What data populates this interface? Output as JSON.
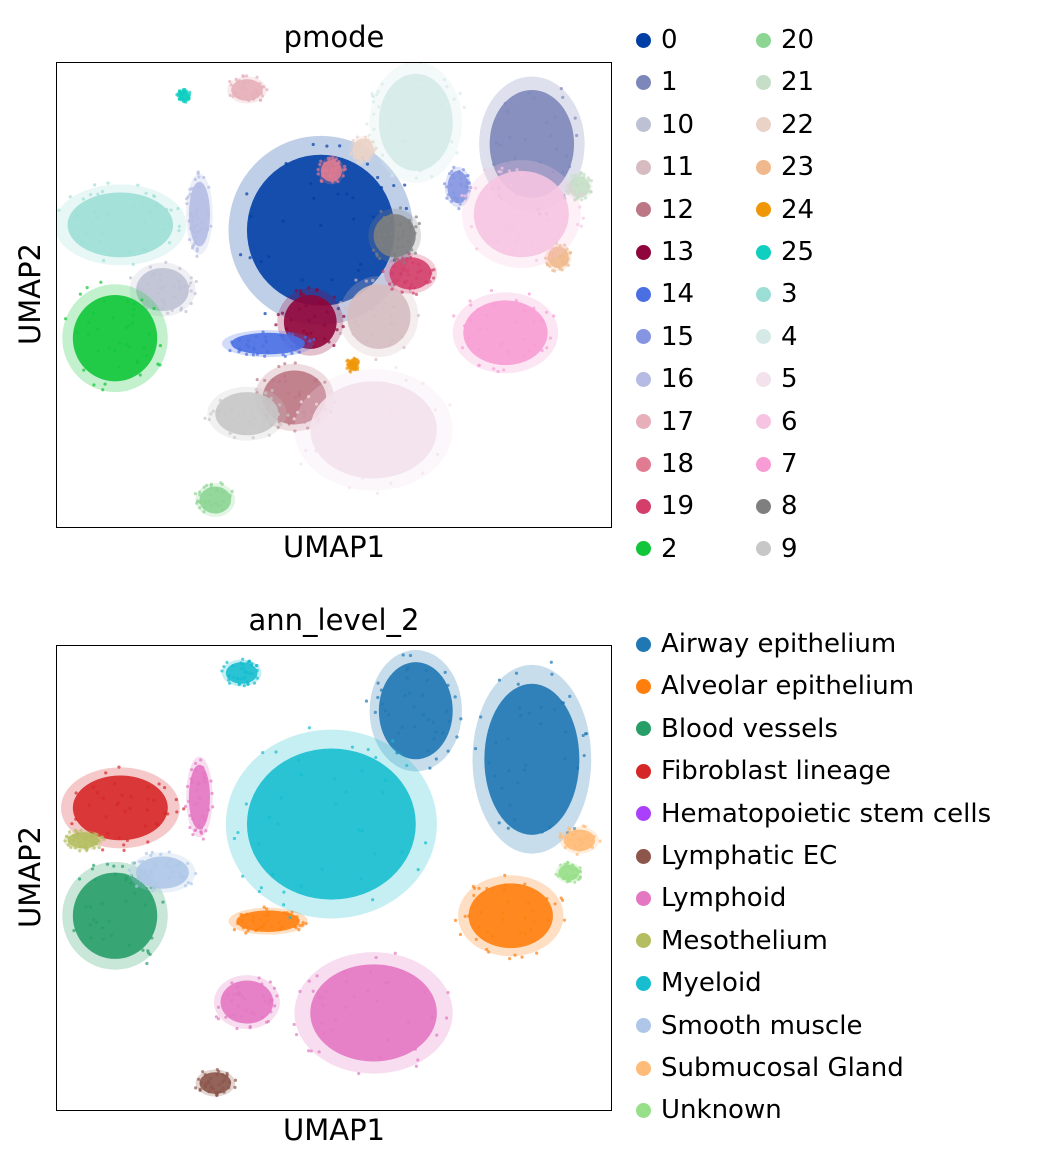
{
  "chart_data": [
    {
      "type": "scatter",
      "title": "pmode",
      "xlabel": "UMAP1",
      "ylabel": "UMAP2",
      "xticks": [],
      "yticks": [],
      "legend_columns": 2,
      "legend_placement": "right",
      "legend": [
        {
          "label": "0",
          "color": "#023fa5"
        },
        {
          "label": "1",
          "color": "#7d87b9"
        },
        {
          "label": "10",
          "color": "#bec1d4"
        },
        {
          "label": "11",
          "color": "#d6bcc0"
        },
        {
          "label": "12",
          "color": "#bb7784"
        },
        {
          "label": "13",
          "color": "#8e063b"
        },
        {
          "label": "14",
          "color": "#4a6fe3"
        },
        {
          "label": "15",
          "color": "#8595e1"
        },
        {
          "label": "16",
          "color": "#b5bbe3"
        },
        {
          "label": "17",
          "color": "#e6afb9"
        },
        {
          "label": "18",
          "color": "#e07b91"
        },
        {
          "label": "19",
          "color": "#d33f6a"
        },
        {
          "label": "2",
          "color": "#11c638"
        },
        {
          "label": "20",
          "color": "#8dd593"
        },
        {
          "label": "21",
          "color": "#c6dec7"
        },
        {
          "label": "22",
          "color": "#ead3c6"
        },
        {
          "label": "23",
          "color": "#f0b98d"
        },
        {
          "label": "24",
          "color": "#ef9708"
        },
        {
          "label": "25",
          "color": "#0fcfc0"
        },
        {
          "label": "3",
          "color": "#9cded6"
        },
        {
          "label": "4",
          "color": "#d5eae7"
        },
        {
          "label": "5",
          "color": "#f3e1eb"
        },
        {
          "label": "6",
          "color": "#f6c4e1"
        },
        {
          "label": "7",
          "color": "#f79cd4"
        },
        {
          "label": "8",
          "color": "#7f7f7f"
        },
        {
          "label": "9",
          "color": "#c7c7c7"
        }
      ],
      "clusters": [
        {
          "label": "0",
          "x": 0.0,
          "y": 0.5,
          "sx": 1.4,
          "sy": 1.4
        },
        {
          "label": "1",
          "x": 4.0,
          "y": 2.1,
          "sx": 0.8,
          "sy": 1.0
        },
        {
          "label": "10",
          "x": -3.0,
          "y": -0.6,
          "sx": 0.5,
          "sy": 0.4
        },
        {
          "label": "11",
          "x": 1.1,
          "y": -1.1,
          "sx": 0.6,
          "sy": 0.6
        },
        {
          "label": "12",
          "x": -0.5,
          "y": -2.6,
          "sx": 0.6,
          "sy": 0.5
        },
        {
          "label": "13",
          "x": -0.2,
          "y": -1.2,
          "sx": 0.5,
          "sy": 0.5
        },
        {
          "label": "14",
          "x": -1.0,
          "y": -1.6,
          "sx": 0.7,
          "sy": 0.2
        },
        {
          "label": "15",
          "x": 2.6,
          "y": 1.3,
          "sx": 0.2,
          "sy": 0.3
        },
        {
          "label": "16",
          "x": -2.3,
          "y": 0.8,
          "sx": 0.2,
          "sy": 0.6
        },
        {
          "label": "17",
          "x": -1.4,
          "y": 3.1,
          "sx": 0.3,
          "sy": 0.2
        },
        {
          "label": "18",
          "x": 0.2,
          "y": 1.6,
          "sx": 0.2,
          "sy": 0.2
        },
        {
          "label": "19",
          "x": 1.7,
          "y": -0.3,
          "sx": 0.4,
          "sy": 0.3
        },
        {
          "label": "2",
          "x": -3.9,
          "y": -1.5,
          "sx": 0.8,
          "sy": 0.8
        },
        {
          "label": "20",
          "x": -2.0,
          "y": -4.5,
          "sx": 0.3,
          "sy": 0.25
        },
        {
          "label": "21",
          "x": 4.9,
          "y": 1.3,
          "sx": 0.2,
          "sy": 0.2
        },
        {
          "label": "22",
          "x": 0.8,
          "y": 2.0,
          "sx": 0.2,
          "sy": 0.2
        },
        {
          "label": "23",
          "x": 4.5,
          "y": 0.0,
          "sx": 0.2,
          "sy": 0.2
        },
        {
          "label": "24",
          "x": 0.6,
          "y": -2.0,
          "sx": 0.1,
          "sy": 0.1
        },
        {
          "label": "25",
          "x": -2.6,
          "y": 3.0,
          "sx": 0.1,
          "sy": 0.1
        },
        {
          "label": "3",
          "x": -3.8,
          "y": 0.6,
          "sx": 1.0,
          "sy": 0.6
        },
        {
          "label": "4",
          "x": 1.8,
          "y": 2.5,
          "sx": 0.7,
          "sy": 0.9
        },
        {
          "label": "5",
          "x": 1.0,
          "y": -3.2,
          "sx": 1.2,
          "sy": 0.9
        },
        {
          "label": "6",
          "x": 3.8,
          "y": 0.8,
          "sx": 0.9,
          "sy": 0.8
        },
        {
          "label": "7",
          "x": 3.5,
          "y": -1.4,
          "sx": 0.8,
          "sy": 0.6
        },
        {
          "label": "8",
          "x": 1.4,
          "y": 0.4,
          "sx": 0.4,
          "sy": 0.4
        },
        {
          "label": "9",
          "x": -1.4,
          "y": -2.9,
          "sx": 0.6,
          "sy": 0.4
        }
      ]
    },
    {
      "type": "scatter",
      "title": "ann_level_2",
      "xlabel": "UMAP1",
      "ylabel": "UMAP2",
      "xticks": [],
      "yticks": [],
      "legend_columns": 1,
      "legend_placement": "right",
      "legend": [
        {
          "label": "Airway epithelium",
          "color": "#1f77b4"
        },
        {
          "label": "Alveolar epithelium",
          "color": "#ff7f0e"
        },
        {
          "label": "Blood vessels",
          "color": "#279e68"
        },
        {
          "label": "Fibroblast lineage",
          "color": "#d62728"
        },
        {
          "label": "Hematopoietic stem cells",
          "color": "#aa40fc"
        },
        {
          "label": "Lymphatic EC",
          "color": "#8c564b"
        },
        {
          "label": "Lymphoid",
          "color": "#e377c2"
        },
        {
          "label": "Mesothelium",
          "color": "#b5bd61"
        },
        {
          "label": "Myeloid",
          "color": "#17becf"
        },
        {
          "label": "Smooth muscle",
          "color": "#aec7e8"
        },
        {
          "label": "Submucosal Gland",
          "color": "#ffbb78"
        },
        {
          "label": "Unknown",
          "color": "#98df8a"
        }
      ],
      "clusters": [
        {
          "label": "Airway epithelium",
          "x": 4.0,
          "y": 1.5,
          "sx": 0.9,
          "sy": 1.4
        },
        {
          "label": "Airway epithelium",
          "x": 1.8,
          "y": 2.4,
          "sx": 0.7,
          "sy": 0.9
        },
        {
          "label": "Alveolar epithelium",
          "x": 3.6,
          "y": -1.4,
          "sx": 0.8,
          "sy": 0.6
        },
        {
          "label": "Alveolar epithelium",
          "x": -1.0,
          "y": -1.5,
          "sx": 0.6,
          "sy": 0.2
        },
        {
          "label": "Blood vessels",
          "x": -3.9,
          "y": -1.4,
          "sx": 0.8,
          "sy": 0.8
        },
        {
          "label": "Fibroblast lineage",
          "x": -3.8,
          "y": 0.6,
          "sx": 0.9,
          "sy": 0.6
        },
        {
          "label": "Lymphatic EC",
          "x": -2.0,
          "y": -4.5,
          "sx": 0.3,
          "sy": 0.2
        },
        {
          "label": "Lymphoid",
          "x": 1.0,
          "y": -3.2,
          "sx": 1.2,
          "sy": 0.9
        },
        {
          "label": "Lymphoid",
          "x": -1.4,
          "y": -3.0,
          "sx": 0.5,
          "sy": 0.4
        },
        {
          "label": "Lymphoid",
          "x": -2.3,
          "y": 0.8,
          "sx": 0.2,
          "sy": 0.6
        },
        {
          "label": "Myeloid",
          "x": 0.2,
          "y": 0.3,
          "sx": 1.6,
          "sy": 1.4
        },
        {
          "label": "Myeloid",
          "x": -1.5,
          "y": 3.1,
          "sx": 0.3,
          "sy": 0.2
        },
        {
          "label": "Smooth muscle",
          "x": -3.0,
          "y": -0.6,
          "sx": 0.5,
          "sy": 0.3
        },
        {
          "label": "Mesothelium",
          "x": -4.5,
          "y": 0.0,
          "sx": 0.3,
          "sy": 0.15
        },
        {
          "label": "Submucosal Gland",
          "x": 4.9,
          "y": 0.0,
          "sx": 0.3,
          "sy": 0.2
        },
        {
          "label": "Unknown",
          "x": 4.7,
          "y": -0.6,
          "sx": 0.2,
          "sy": 0.15
        }
      ]
    }
  ]
}
